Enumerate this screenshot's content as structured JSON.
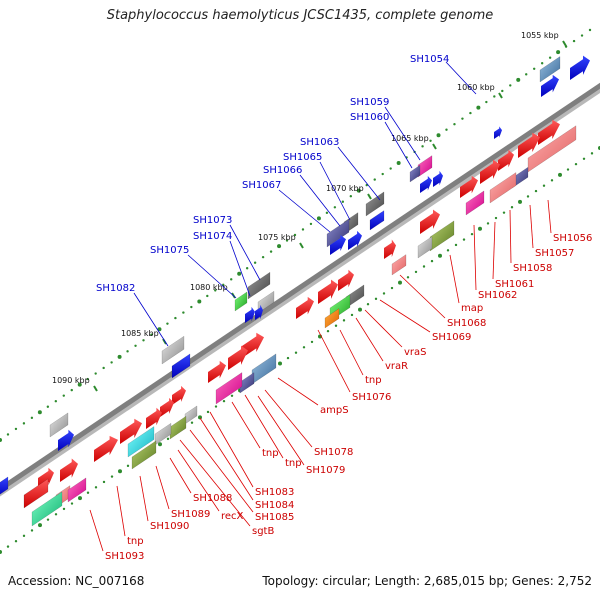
{
  "title": "Staphylococcus haemolyticus JCSC1435, complete genome",
  "footer": {
    "accession": "Accession: NC_007168",
    "summary": "Topology: circular; Length: 2,685,015 bp; Genes: 2,752"
  },
  "colors": {
    "backbone": "#7f7f7f",
    "scale_dots": "#2e8b2e",
    "label_blue": "#0000cc",
    "label_red": "#cc0000",
    "leader_blue": "#0000cc",
    "leader_red": "#dd0000"
  },
  "scale_ticks": [
    {
      "label": "1055 kbp"
    },
    {
      "label": "1060 kbp"
    },
    {
      "label": "1065 kbp"
    },
    {
      "label": "1070 kbp"
    },
    {
      "label": "1075 kbp"
    },
    {
      "label": "1080 kbp"
    },
    {
      "label": "1085 kbp"
    },
    {
      "label": "1090 kbp"
    }
  ],
  "top_labels": [
    {
      "text": "SH1054"
    },
    {
      "text": "SH1059"
    },
    {
      "text": "SH1060"
    },
    {
      "text": "SH1063"
    },
    {
      "text": "SH1065"
    },
    {
      "text": "SH1066"
    },
    {
      "text": "SH1067"
    },
    {
      "text": "SH1073"
    },
    {
      "text": "SH1074"
    },
    {
      "text": "SH1075"
    },
    {
      "text": "SH1082"
    }
  ],
  "bottom_labels": [
    {
      "text": "SH1056"
    },
    {
      "text": "SH1057"
    },
    {
      "text": "SH1058"
    },
    {
      "text": "SH1061"
    },
    {
      "text": "SH1062"
    },
    {
      "text": "map"
    },
    {
      "text": "SH1068"
    },
    {
      "text": "SH1069"
    },
    {
      "text": "vraS"
    },
    {
      "text": "vraR"
    },
    {
      "text": "tnp"
    },
    {
      "text": "SH1076"
    },
    {
      "text": "ampS"
    },
    {
      "text": "SH1078"
    },
    {
      "text": "SH1079"
    },
    {
      "text": "tnp"
    },
    {
      "text": "tnp"
    },
    {
      "text": "SH1083"
    },
    {
      "text": "SH1084"
    },
    {
      "text": "SH1085"
    },
    {
      "text": "sgtB"
    },
    {
      "text": "recX"
    },
    {
      "text": "SH1088"
    },
    {
      "text": "SH1089"
    },
    {
      "text": "SH1090"
    },
    {
      "text": "tnp"
    },
    {
      "text": "SH1093"
    }
  ]
}
